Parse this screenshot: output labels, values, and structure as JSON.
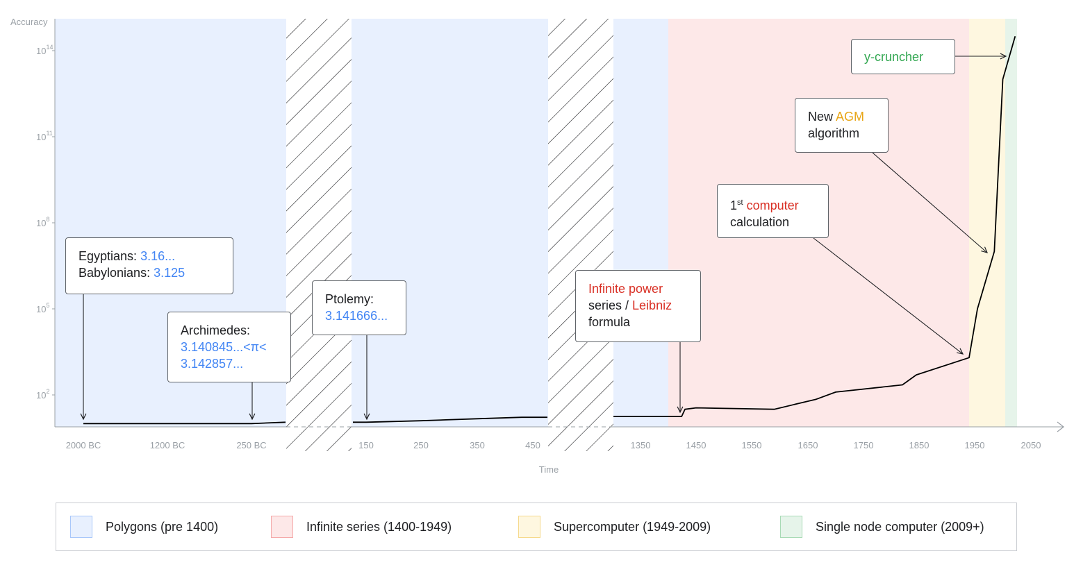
{
  "chart_data": {
    "type": "line",
    "ylabel": "Accuracy",
    "xlabel": "Time",
    "y_scale": "log",
    "y_ticks": [
      {
        "exp": 14,
        "label": "10",
        "sup": "14"
      },
      {
        "exp": 11,
        "label": "10",
        "sup": "11"
      },
      {
        "exp": 8,
        "label": "10",
        "sup": "8"
      },
      {
        "exp": 5,
        "label": "10",
        "sup": "5"
      },
      {
        "exp": 2,
        "label": "10",
        "sup": "2"
      }
    ],
    "x_tick_labels": [
      "2000 BC",
      "1200 BC",
      "250 BC",
      "150",
      "250",
      "350",
      "450",
      "1350",
      "1450",
      "1550",
      "1650",
      "1750",
      "1850",
      "1950",
      "2050"
    ],
    "x_axis_breaks": [
      "250 BC – 150",
      "450 – 1350"
    ],
    "series": [
      {
        "line_color": "#000000",
        "points": [
          {
            "year": -2000,
            "log10": 1
          },
          {
            "year": -250,
            "log10": 1
          },
          {
            "year": -150,
            "log10": 1.05
          },
          {
            "year": 100,
            "log10": 1.05
          },
          {
            "year": 150,
            "log10": 1.05
          },
          {
            "year": 250,
            "log10": 1.1
          },
          {
            "year": 350,
            "log10": 1.17
          },
          {
            "year": 430,
            "log10": 1.22
          },
          {
            "year": 475,
            "log10": 1.22
          },
          {
            "year": 1300,
            "log10": 1.25
          },
          {
            "year": 1424,
            "log10": 1.25
          },
          {
            "year": 1430,
            "log10": 1.5
          },
          {
            "year": 1450,
            "log10": 1.55
          },
          {
            "year": 1590,
            "log10": 1.5
          },
          {
            "year": 1665,
            "log10": 1.85
          },
          {
            "year": 1700,
            "log10": 2.1
          },
          {
            "year": 1820,
            "log10": 2.35
          },
          {
            "year": 1845,
            "log10": 2.7
          },
          {
            "year": 1940,
            "log10": 3.3
          },
          {
            "year": 1955,
            "log10": 5.0
          },
          {
            "year": 1985,
            "log10": 7.0
          },
          {
            "year": 2000,
            "log10": 13.0
          },
          {
            "year": 2022,
            "log10": 14.5
          }
        ]
      }
    ],
    "eras": [
      {
        "label": "Polygons (pre 1400)",
        "color": "#e8f0fe",
        "swatch_border": "#a8c7fa"
      },
      {
        "label": "Infinite series (1400-1949)",
        "color": "#fde8e8",
        "swatch_border": "#f5a9a9"
      },
      {
        "label": "Supercomputer (1949-2009)",
        "color": "#fef7e0",
        "swatch_border": "#f6d98b"
      },
      {
        "label": "Single node computer (2009+)",
        "color": "#e6f4ea",
        "swatch_border": "#a8dab5"
      }
    ],
    "annotations": [
      {
        "id": "egypt",
        "parts": [
          {
            "t": "Egyptians: "
          },
          {
            "t": "3.16...",
            "c": "blue"
          },
          {
            "br": true
          },
          {
            "t": "Babylonians: "
          },
          {
            "t": "3.125",
            "c": "blue"
          }
        ]
      },
      {
        "id": "archimedes",
        "parts": [
          {
            "t": "Archimedes:"
          },
          {
            "br": true
          },
          {
            "t": "3.140845...<π<",
            "c": "blue"
          },
          {
            "br": true
          },
          {
            "t": "3.142857...",
            "c": "blue"
          }
        ]
      },
      {
        "id": "ptolemy",
        "parts": [
          {
            "t": "Ptolemy:"
          },
          {
            "br": true
          },
          {
            "t": "3.141666...",
            "c": "blue"
          }
        ]
      },
      {
        "id": "leibniz",
        "parts": [
          {
            "t": "Infinite power",
            "c": "red"
          },
          {
            "br": true
          },
          {
            "t": "series / "
          },
          {
            "t": "Leibniz",
            "c": "red"
          },
          {
            "br": true
          },
          {
            "t": "formula"
          }
        ]
      },
      {
        "id": "computer",
        "parts": [
          {
            "t": "1"
          },
          {
            "sup": "st"
          },
          {
            "t": " "
          },
          {
            "t": "computer",
            "c": "red"
          },
          {
            "br": true
          },
          {
            "t": "calculation"
          }
        ]
      },
      {
        "id": "agm",
        "parts": [
          {
            "t": "New "
          },
          {
            "t": "AGM",
            "c": "gold"
          },
          {
            "br": true
          },
          {
            "t": "algorithm"
          }
        ]
      },
      {
        "id": "ycruncher",
        "parts": [
          {
            "t": "y-cruncher",
            "c": "green"
          }
        ]
      }
    ]
  }
}
